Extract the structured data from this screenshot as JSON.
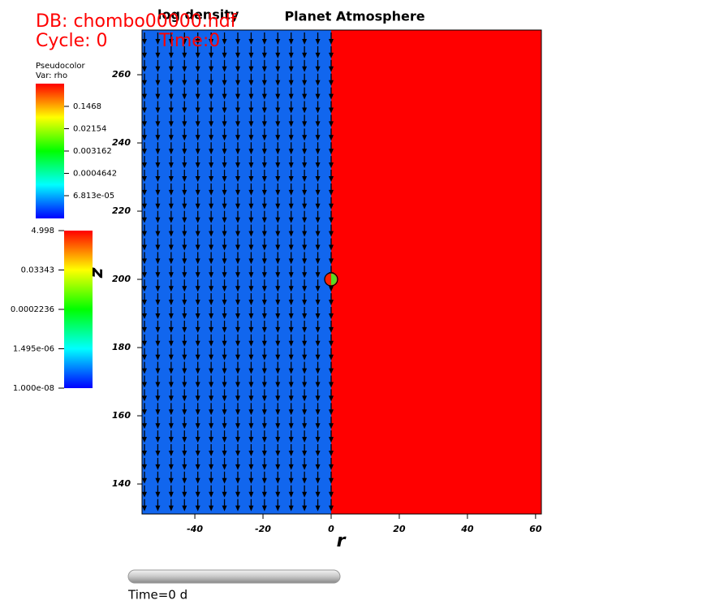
{
  "chart_data": {
    "type": "pseudocolor",
    "title": "Planet Atmosphere",
    "db_label": "DB: chombo00000.hdf",
    "cycle_label": "Cycle: 0",
    "time_label": "Time:0",
    "plot_name": "log density",
    "xlabel": "r",
    "ylabel": "z",
    "xlim": [
      -55.5,
      61.7
    ],
    "ylim": [
      131.2,
      273.1
    ],
    "xticks": [
      -40,
      -20,
      0,
      20,
      40,
      60
    ],
    "yticks": [
      140,
      160,
      180,
      200,
      220,
      240,
      260
    ],
    "region_colors": [
      "#1166ee",
      "#ff0000"
    ],
    "legend_plot": "Pseudocolor",
    "legend_var": "Var: rho",
    "legend1_labels": [
      "0.1468",
      "0.02154",
      "0.003162",
      "0.0004642",
      "6.813e-05"
    ],
    "legend2_labels": [
      "4.998",
      "0.03343",
      "0.0002236",
      "1.495e-06",
      "1.000e-08"
    ],
    "slider_label": "Time=0 d"
  }
}
